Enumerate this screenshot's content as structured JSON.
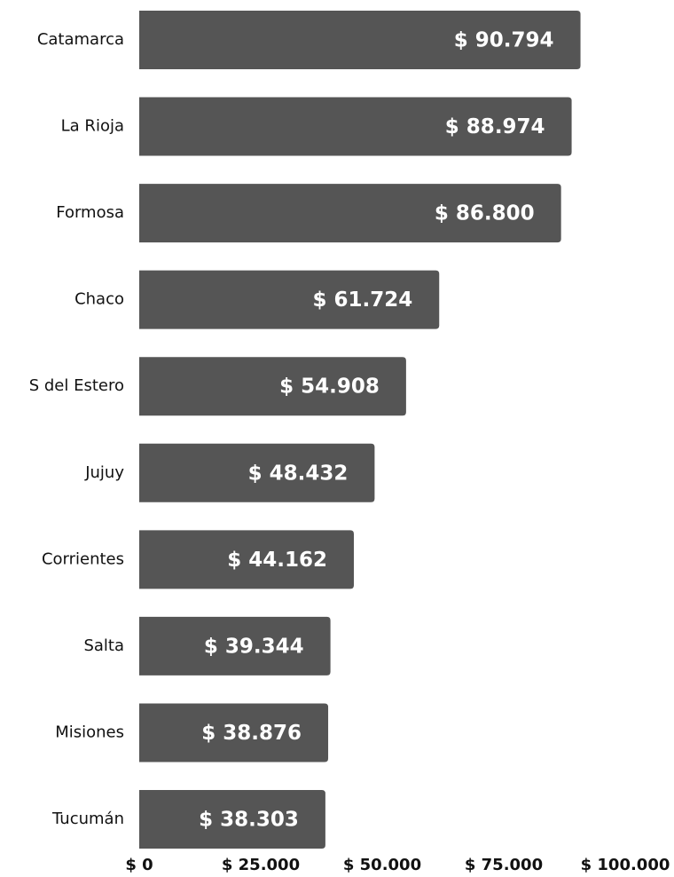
{
  "chart_data": {
    "type": "bar",
    "orientation": "horizontal",
    "categories": [
      "Catamarca",
      "La Rioja",
      "Formosa",
      "Chaco",
      "S del Estero",
      "Jujuy",
      "Corrientes",
      "Salta",
      "Misiones",
      "Tucumán"
    ],
    "values": [
      90794,
      88974,
      86800,
      61724,
      54908,
      48432,
      44162,
      39344,
      38876,
      38303
    ],
    "value_labels": [
      "$ 90.794",
      "$ 88.974",
      "$ 86.800",
      "$ 61.724",
      "$ 54.908",
      "$ 48.432",
      "$ 44.162",
      "$ 39.344",
      "$ 38.876",
      "$ 38.303"
    ],
    "color": "#555555",
    "xlim": [
      0,
      100000
    ],
    "xticks": [
      {
        "value": 0,
        "label": "$ 0"
      },
      {
        "value": 25000,
        "label": "$ 25.000"
      },
      {
        "value": 50000,
        "label": "$ 50.000"
      },
      {
        "value": 75000,
        "label": "$ 75.000"
      },
      {
        "value": 100000,
        "label": "$ 100.000"
      }
    ],
    "grid": false
  }
}
